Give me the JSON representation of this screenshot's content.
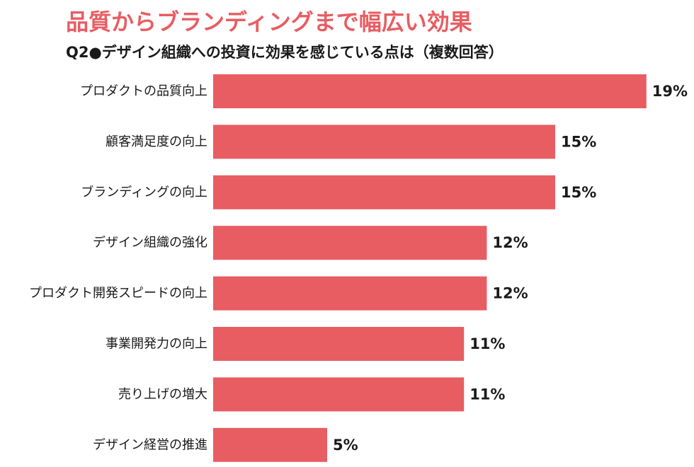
{
  "header": {
    "title": "品質からブランディングまで幅広い効果",
    "subtitle": "Q2●デザイン組織への投資に効果を感じている点は（複数回答）"
  },
  "colors": {
    "bar": "#e85d62",
    "title": "#e85d62",
    "text": "#1a1a1a"
  },
  "chart_data": {
    "type": "bar",
    "orientation": "horizontal",
    "categories": [
      "プロダクトの品質向上",
      "顧客満足度の向上",
      "ブランディングの向上",
      "デザイン組織の強化",
      "プロダクト開発スピードの向上",
      "事業開発力の向上",
      "売り上げの増大",
      "デザイン経営の推進"
    ],
    "values": [
      19,
      15,
      15,
      12,
      12,
      11,
      11,
      5
    ],
    "value_labels": [
      "19%",
      "15%",
      "15%",
      "12%",
      "12%",
      "11%",
      "11%",
      "5%"
    ],
    "unit": "%",
    "title": "品質からブランディングまで幅広い効果",
    "xlabel": "",
    "ylabel": "",
    "grid": false,
    "legend": "none"
  }
}
